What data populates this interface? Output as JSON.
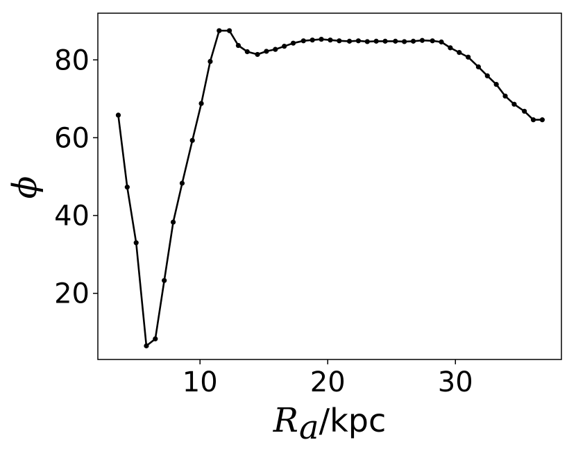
{
  "chart_data": {
    "type": "line",
    "xlabel": {
      "symbol": "R",
      "subscript": "a",
      "unit": "/kpc"
    },
    "ylabel": "ϕ",
    "xlim": [
      2.0,
      38.3
    ],
    "ylim": [
      3.0,
      92.0
    ],
    "xticks": [
      10,
      20,
      30
    ],
    "yticks": [
      20,
      40,
      60,
      80
    ],
    "grid": false,
    "legend": "none",
    "line_color": "#000000",
    "marker": "circle",
    "series": [
      {
        "x": [
          3.6,
          4.3,
          5.0,
          5.8,
          6.5,
          7.2,
          7.9,
          8.6,
          9.4,
          10.1,
          10.8,
          11.5,
          12.3,
          13.0,
          13.7,
          14.5,
          15.2,
          15.9,
          16.6,
          17.3,
          18.1,
          18.8,
          19.5,
          20.2,
          20.9,
          21.7,
          22.4,
          23.1,
          23.8,
          24.5,
          25.3,
          26.0,
          26.7,
          27.4,
          28.2,
          28.9,
          29.6,
          30.3,
          31.0,
          31.8,
          32.5,
          33.2,
          33.9,
          34.6,
          35.4,
          36.1,
          36.8
        ],
        "y": [
          65.8,
          47.3,
          33.0,
          6.5,
          8.3,
          23.3,
          38.3,
          48.3,
          59.3,
          68.8,
          79.6,
          87.5,
          87.5,
          83.7,
          82.1,
          81.4,
          82.2,
          82.7,
          83.5,
          84.3,
          84.9,
          85.1,
          85.3,
          85.1,
          84.9,
          84.8,
          84.9,
          84.7,
          84.8,
          84.8,
          84.8,
          84.7,
          84.8,
          85.0,
          84.9,
          84.6,
          83.1,
          81.9,
          80.7,
          78.2,
          75.9,
          73.7,
          70.7,
          68.6,
          66.8,
          64.6,
          64.6
        ]
      }
    ]
  }
}
